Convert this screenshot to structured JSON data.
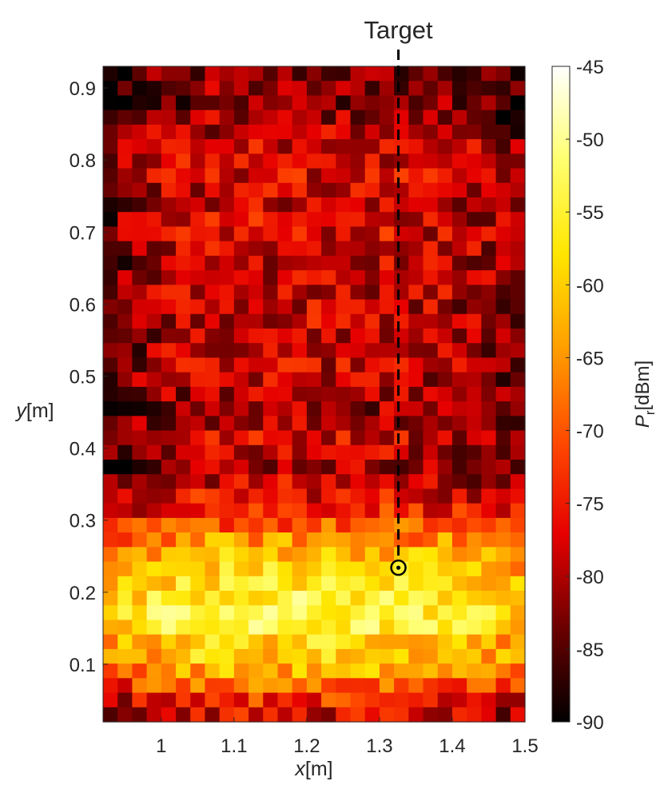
{
  "chart_data": {
    "type": "heatmap",
    "title": "",
    "annotation": "Target",
    "target_marker": {
      "x": 1.326,
      "y": 0.234
    },
    "target_line_x": 1.326,
    "xlabel": {
      "var": "x",
      "unit": "[m]"
    },
    "ylabel": {
      "var": "y",
      "unit": "[m]"
    },
    "xlim": [
      0.92,
      1.5
    ],
    "ylim": [
      0.02,
      0.93
    ],
    "xticks": [
      1,
      1.1,
      1.2,
      1.3,
      1.4,
      1.5
    ],
    "yticks": [
      0.1,
      0.2,
      0.3,
      0.4,
      0.5,
      0.6,
      0.7,
      0.8,
      0.9
    ],
    "grid": "off",
    "cell_size_m": 0.02,
    "n_cols": 29,
    "n_rows": 45,
    "colorbar": {
      "label_var": "P",
      "label_sub": "r",
      "label_unit": "[dBm]",
      "range": [
        -90,
        -45
      ],
      "ticks": [
        -45,
        -50,
        -55,
        -60,
        -65,
        -70,
        -75,
        -80,
        -85,
        -90
      ],
      "colormap": "hot",
      "stops": [
        "#000000",
        "#6b0000",
        "#e60000",
        "#ff4a00",
        "#ff9f00",
        "#ffe600",
        "#ffff70",
        "#ffffff"
      ]
    },
    "row_mean_dBm_top_to_bottom": [
      -86,
      -85,
      -85,
      -84,
      -82,
      -80,
      -80,
      -80,
      -81,
      -81,
      -80,
      -80,
      -80,
      -81,
      -81,
      -81,
      -81,
      -81,
      -82,
      -82,
      -81,
      -82,
      -83,
      -84,
      -82,
      -80,
      -81,
      -83,
      -81,
      -79,
      -76,
      -73,
      -68,
      -64,
      -62,
      -60,
      -58,
      -57,
      -58,
      -62,
      -63,
      -66,
      -71,
      -76,
      -80
    ],
    "row_labels_y_m_top_to_bottom": [
      0.92,
      0.9,
      0.88,
      0.86,
      0.84,
      0.82,
      0.8,
      0.78,
      0.76,
      0.74,
      0.72,
      0.7,
      0.68,
      0.66,
      0.64,
      0.62,
      0.6,
      0.58,
      0.56,
      0.54,
      0.52,
      0.5,
      0.48,
      0.46,
      0.44,
      0.42,
      0.4,
      0.38,
      0.36,
      0.34,
      0.32,
      0.3,
      0.28,
      0.26,
      0.24,
      0.22,
      0.2,
      0.18,
      0.16,
      0.14,
      0.12,
      0.1,
      0.08,
      0.06,
      0.04
    ],
    "col_offset_dBm": [
      -4,
      -2,
      0,
      1,
      2,
      2,
      3,
      3,
      3,
      3,
      3,
      3,
      3,
      3,
      3,
      3,
      3,
      3,
      3,
      3,
      3,
      2,
      2,
      2,
      1,
      1,
      0,
      -1,
      -2
    ]
  }
}
